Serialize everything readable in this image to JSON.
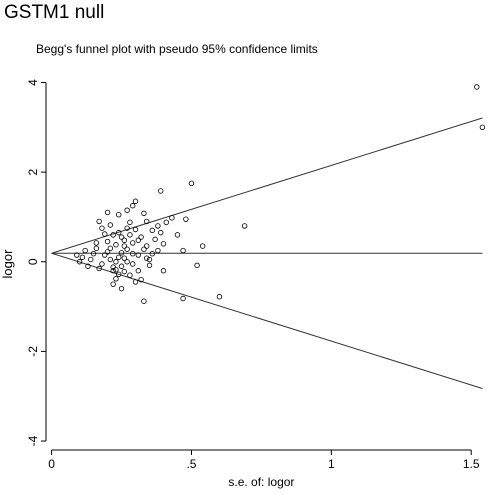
{
  "heading": "GSTM1 null",
  "chart_data": {
    "type": "scatter",
    "title": "Begg's funnel plot with pseudo 95% confidence limits",
    "xlabel": "s.e. of: logor",
    "ylabel": "logor",
    "xlim": [
      -0.02,
      1.56
    ],
    "ylim": [
      -4.2,
      4.1
    ],
    "xticks": [
      0,
      0.5,
      1,
      1.5
    ],
    "xtick_labels": [
      "0",
      ".5",
      "1",
      "1.5"
    ],
    "yticks": [
      4,
      2,
      0,
      -2,
      -4
    ],
    "ytick_labels": [
      "4",
      "2",
      "0",
      "-2",
      "-4"
    ],
    "grid": false,
    "pooled_logor": 0.19,
    "ci_multiplier": 1.96,
    "points": [
      [
        1.52,
        3.9
      ],
      [
        1.54,
        3.0
      ],
      [
        0.69,
        0.8
      ],
      [
        0.5,
        1.75
      ],
      [
        0.39,
        1.58
      ],
      [
        0.48,
        0.95
      ],
      [
        0.47,
        0.25
      ],
      [
        0.52,
        -0.08
      ],
      [
        0.54,
        0.35
      ],
      [
        0.6,
        -0.78
      ],
      [
        0.47,
        -0.82
      ],
      [
        0.33,
        -0.88
      ],
      [
        0.45,
        0.6
      ],
      [
        0.43,
        0.98
      ],
      [
        0.41,
        0.88
      ],
      [
        0.4,
        0.4
      ],
      [
        0.39,
        0.65
      ],
      [
        0.38,
        0.8
      ],
      [
        0.36,
        0.18
      ],
      [
        0.35,
        0.05
      ],
      [
        0.34,
        0.35
      ],
      [
        0.35,
        -0.08
      ],
      [
        0.4,
        -0.2
      ],
      [
        0.33,
        1.08
      ],
      [
        0.32,
        0.55
      ],
      [
        0.31,
        0.15
      ],
      [
        0.3,
        1.35
      ],
      [
        0.29,
        1.25
      ],
      [
        0.27,
        1.15
      ],
      [
        0.27,
        0.75
      ],
      [
        0.28,
        0.6
      ],
      [
        0.29,
        0.42
      ],
      [
        0.26,
        0.35
      ],
      [
        0.25,
        0.2
      ],
      [
        0.24,
        0.1
      ],
      [
        0.23,
        0.0
      ],
      [
        0.22,
        -0.12
      ],
      [
        0.21,
        0.3
      ],
      [
        0.2,
        0.45
      ],
      [
        0.19,
        0.62
      ],
      [
        0.18,
        0.75
      ],
      [
        0.17,
        0.9
      ],
      [
        0.24,
        1.05
      ],
      [
        0.2,
        1.1
      ],
      [
        0.16,
        0.3
      ],
      [
        0.15,
        0.18
      ],
      [
        0.14,
        0.05
      ],
      [
        0.13,
        -0.1
      ],
      [
        0.12,
        0.25
      ],
      [
        0.11,
        0.1
      ],
      [
        0.1,
        0.0
      ],
      [
        0.09,
        0.15
      ],
      [
        0.22,
        -0.5
      ],
      [
        0.23,
        -0.38
      ],
      [
        0.25,
        -0.6
      ],
      [
        0.26,
        -0.22
      ],
      [
        0.28,
        -0.3
      ],
      [
        0.3,
        -0.45
      ],
      [
        0.32,
        -0.4
      ],
      [
        0.31,
        -0.2
      ],
      [
        0.29,
        -0.05
      ],
      [
        0.27,
        0.0
      ],
      [
        0.26,
        0.08
      ],
      [
        0.24,
        -0.28
      ],
      [
        0.22,
        -0.2
      ],
      [
        0.21,
        0.05
      ],
      [
        0.2,
        0.22
      ],
      [
        0.19,
        0.15
      ],
      [
        0.18,
        -0.05
      ],
      [
        0.17,
        -0.15
      ],
      [
        0.16,
        0.42
      ],
      [
        0.3,
        0.72
      ],
      [
        0.31,
        0.48
      ],
      [
        0.28,
        0.88
      ],
      [
        0.33,
        0.28
      ],
      [
        0.36,
        0.7
      ],
      [
        0.37,
        0.5
      ],
      [
        0.34,
        0.9
      ],
      [
        0.25,
        0.55
      ],
      [
        0.26,
        0.48
      ],
      [
        0.23,
        0.38
      ],
      [
        0.22,
        0.6
      ],
      [
        0.21,
        0.82
      ],
      [
        0.27,
        0.28
      ],
      [
        0.29,
        0.18
      ],
      [
        0.25,
        -0.1
      ],
      [
        0.23,
        -0.18
      ],
      [
        0.24,
        0.65
      ],
      [
        0.34,
        0.08
      ],
      [
        0.38,
        0.25
      ]
    ]
  }
}
